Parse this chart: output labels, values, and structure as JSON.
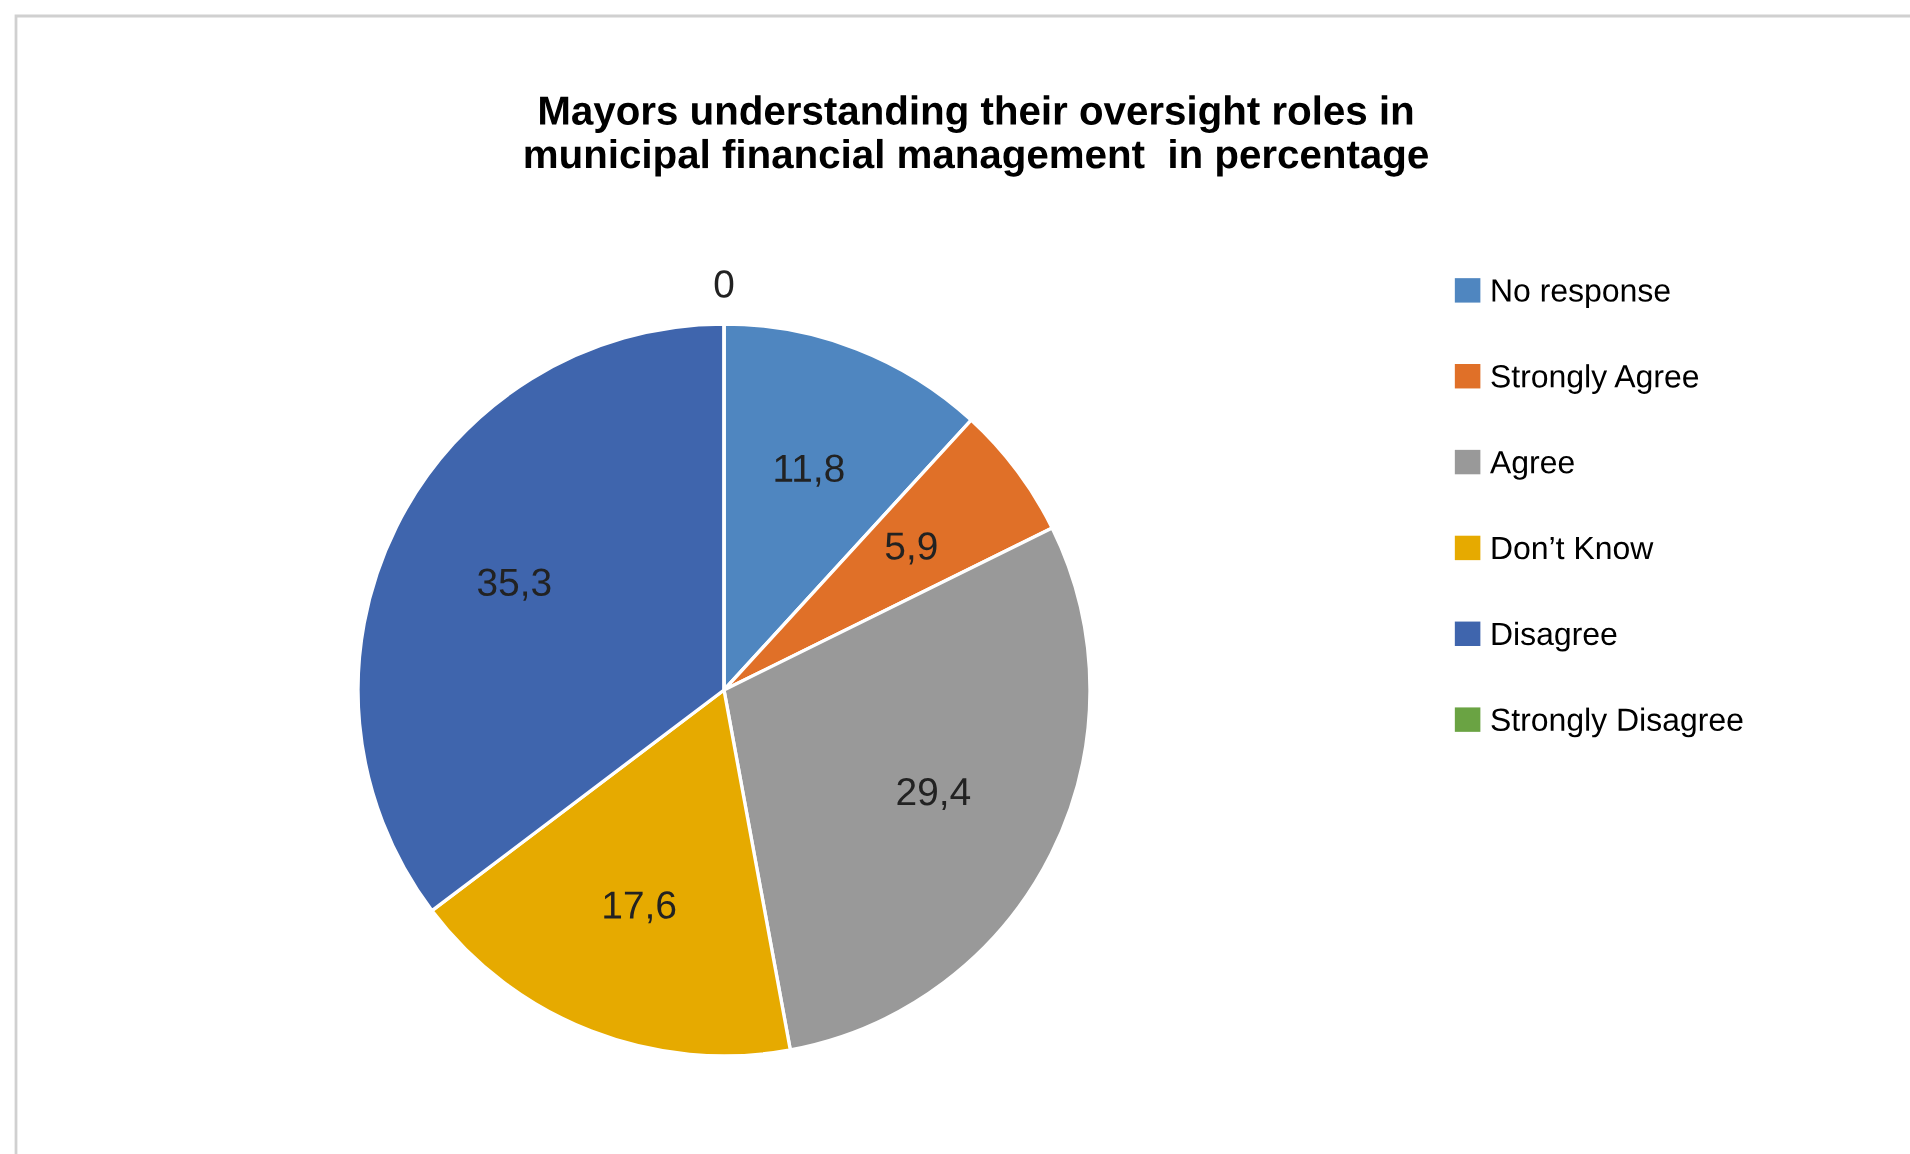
{
  "chart_data": {
    "type": "pie",
    "title": "Mayors understanding their oversight roles in\nmunicipal financial management  in percentage",
    "categories": [
      "No response",
      "Strongly Agree",
      "Agree",
      "Don’t Know",
      "Disagree",
      "Strongly Disagree"
    ],
    "values": [
      11.8,
      5.9,
      29.4,
      17.6,
      35.3,
      0
    ],
    "value_labels": [
      "11,8",
      "5,9",
      "29,4",
      "17,6",
      "35,3",
      "0"
    ],
    "colors": [
      "#4f86c0",
      "#e07028",
      "#999999",
      "#e6aa00",
      "#3f65ad",
      "#6aa343"
    ],
    "legend": "right"
  }
}
